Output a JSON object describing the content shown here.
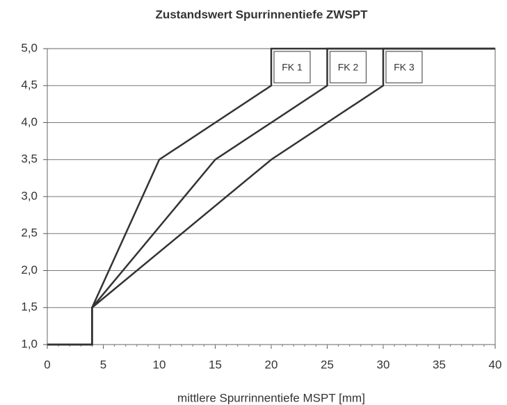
{
  "chart_data": {
    "type": "line",
    "title": "Zustandswert Spurrinnentiefe ZWSPT",
    "x_label": "mittlere Spurrinnentiefe MSPT [mm]",
    "series": [
      {
        "name": "FK 1",
        "color": "#333333",
        "x": [
          0,
          4,
          4,
          10,
          20,
          20,
          40
        ],
        "values": [
          1.0,
          1.0,
          1.5,
          3.5,
          4.5,
          5.0,
          5.0
        ]
      },
      {
        "name": "FK 2",
        "color": "#333333",
        "x": [
          0,
          4,
          4,
          15,
          25,
          25,
          40
        ],
        "values": [
          1.0,
          1.0,
          1.5,
          3.5,
          4.5,
          5.0,
          5.0
        ]
      },
      {
        "name": "FK 3",
        "color": "#333333",
        "x": [
          0,
          4,
          4,
          20,
          30,
          30,
          40
        ],
        "values": [
          1.0,
          1.0,
          1.5,
          3.5,
          4.5,
          5.0,
          5.0
        ]
      }
    ],
    "xlim": [
      0,
      40
    ],
    "xticks": [
      0,
      5,
      10,
      15,
      20,
      25,
      30,
      35,
      40
    ],
    "ylim": [
      1,
      5
    ],
    "yticks": [
      {
        "value": 1,
        "label": "1,0"
      },
      {
        "value": 1.5,
        "label": "1,5"
      },
      {
        "value": 2,
        "label": "2,0"
      },
      {
        "value": 2.5,
        "label": "2,5"
      },
      {
        "value": 3,
        "label": "3,0"
      },
      {
        "value": 3.5,
        "label": "3,5"
      },
      {
        "value": 4,
        "label": "4,0"
      },
      {
        "value": 4.5,
        "label": "4,5"
      },
      {
        "value": 5,
        "label": "5,0"
      }
    ],
    "grid": true
  }
}
